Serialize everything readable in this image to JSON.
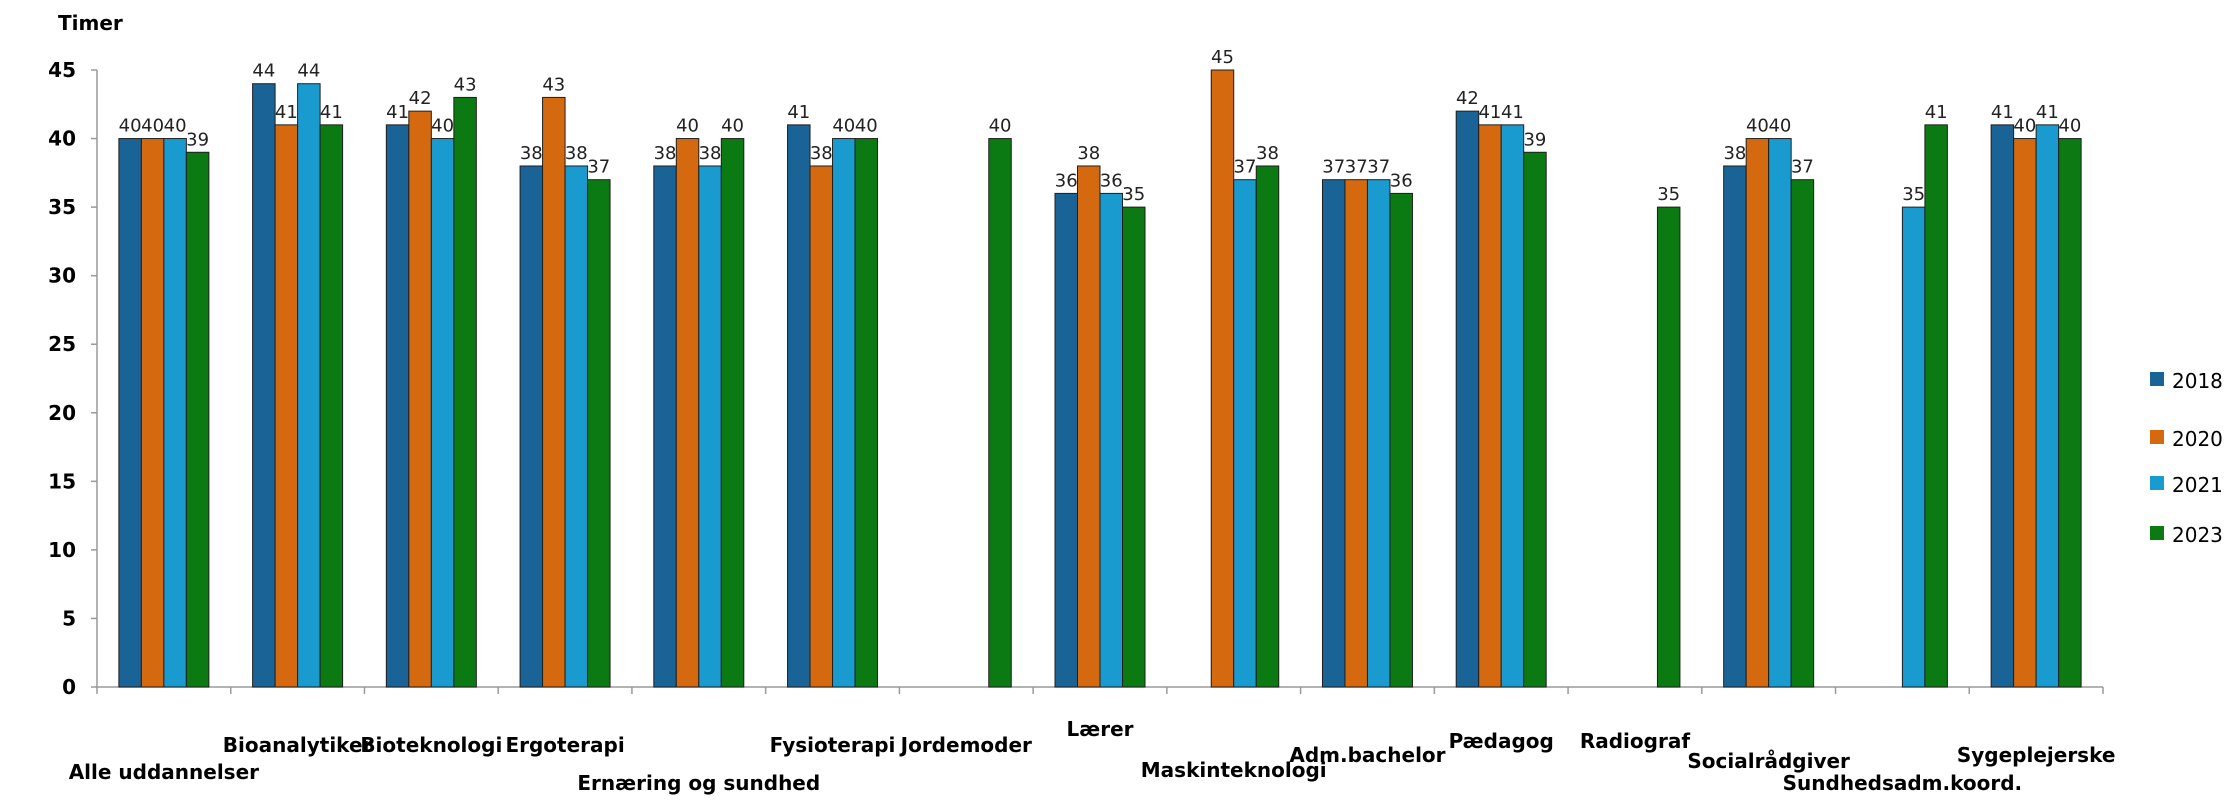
{
  "chart_data": {
    "type": "bar",
    "ylabel": "Timer",
    "ylim": [
      0,
      45
    ],
    "yticks": [
      0,
      5,
      10,
      15,
      20,
      25,
      30,
      35,
      40,
      45
    ],
    "grid": false,
    "legend_position": "right",
    "categories": [
      "Alle uddannelser",
      "Bioanalytiker",
      "Bioteknologi",
      "Ergoterapi",
      "Ernæring og sundhed",
      "Fysioterapi",
      "Jordemoder",
      "Lærer",
      "Maskinteknologi",
      "Adm.bachelor",
      "Pædagog",
      "Radiograf",
      "Socialrådgiver",
      "Sundhedsadm.koord.",
      "Sygeplejerske"
    ],
    "series": [
      {
        "name": "2018",
        "color": "#1a6396",
        "values": [
          40,
          44,
          41,
          38,
          38,
          41,
          null,
          36,
          null,
          37,
          42,
          null,
          38,
          null,
          41
        ]
      },
      {
        "name": "2020",
        "color": "#d4690f",
        "values": [
          40,
          41,
          42,
          43,
          40,
          38,
          null,
          38,
          45,
          37,
          41,
          null,
          40,
          null,
          40
        ]
      },
      {
        "name": "2021",
        "color": "#1a9bd0",
        "values": [
          40,
          44,
          40,
          38,
          38,
          40,
          null,
          36,
          37,
          37,
          41,
          null,
          40,
          35,
          41
        ]
      },
      {
        "name": "2023",
        "color": "#0b7a12",
        "values": [
          39,
          41,
          43,
          37,
          40,
          40,
          40,
          35,
          38,
          36,
          39,
          35,
          37,
          41,
          40
        ]
      }
    ]
  }
}
